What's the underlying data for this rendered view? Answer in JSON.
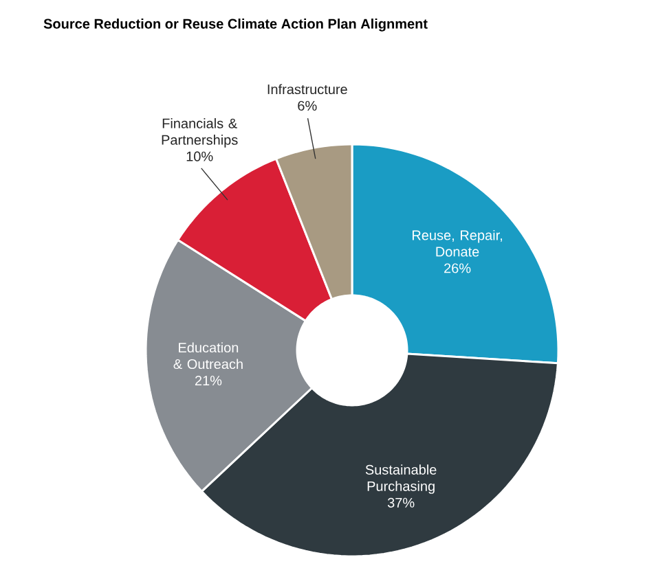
{
  "chart_data": {
    "type": "donut",
    "title": "Source Reduction or Reuse Climate Action Plan Alignment",
    "categories": [
      "Reuse, Repair, Donate",
      "Sustainable Purchasing",
      "Education & Outreach",
      "Financials & Partnerships",
      "Infrastructure"
    ],
    "values": [
      26,
      37,
      21,
      10,
      6
    ],
    "value_labels": [
      "26%",
      "37%",
      "21%",
      "10%",
      "6%"
    ],
    "colors": [
      "#1a9cc4",
      "#2f3a40",
      "#878c92",
      "#d91f36",
      "#a89a82"
    ]
  }
}
